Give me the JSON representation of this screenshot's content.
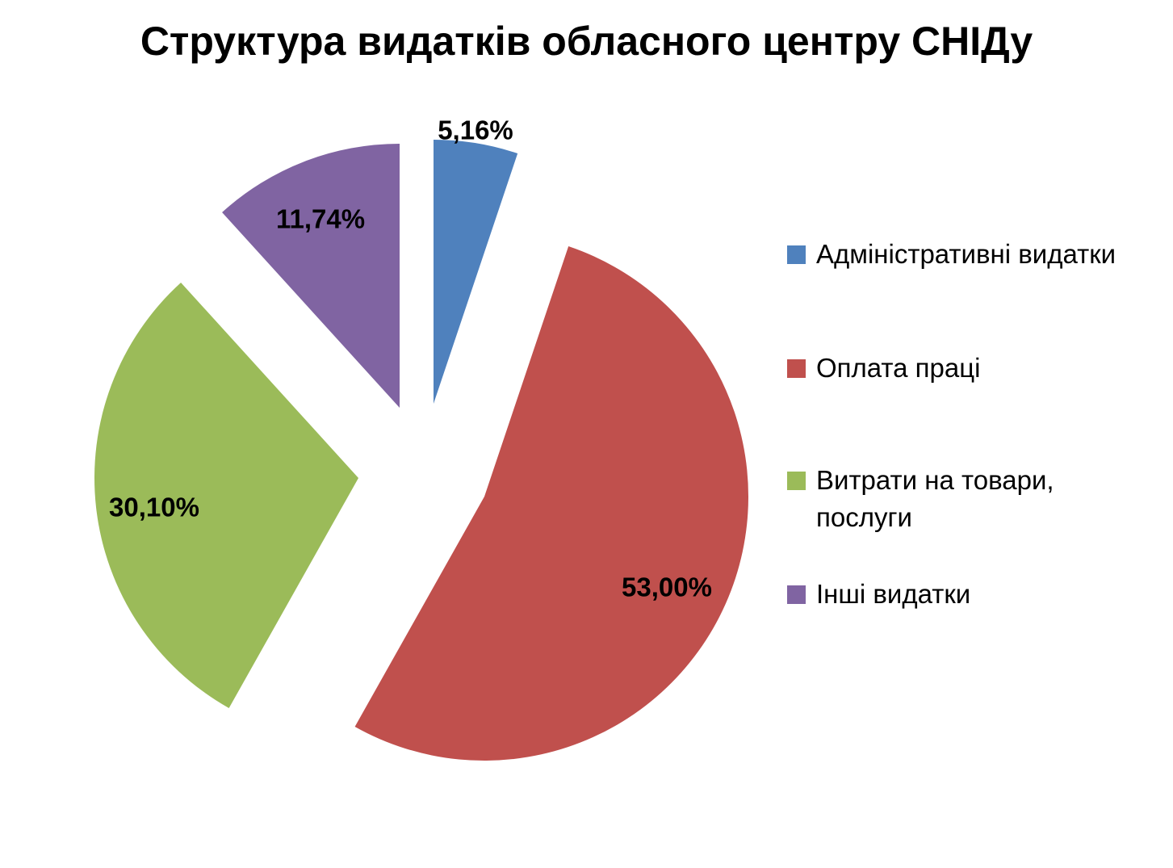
{
  "chart_data": {
    "type": "pie",
    "title": "Структура видатків обласного центру СНІДу",
    "slices": [
      {
        "name": "Адміністративні видатки",
        "value": 5.16,
        "label": "5,16%",
        "color": "#4F81BD"
      },
      {
        "name": "Оплата праці",
        "value": 53.0,
        "label": "53,00%",
        "color": "#C0504D"
      },
      {
        "name": "Витрати на товари, послуги",
        "value": 30.1,
        "label": "30,10%",
        "color": "#9BBB59"
      },
      {
        "name": "Інші видатки",
        "value": 11.74,
        "label": "11,74%",
        "color": "#8064A2"
      }
    ],
    "exploded": true,
    "legend_position": "right"
  }
}
